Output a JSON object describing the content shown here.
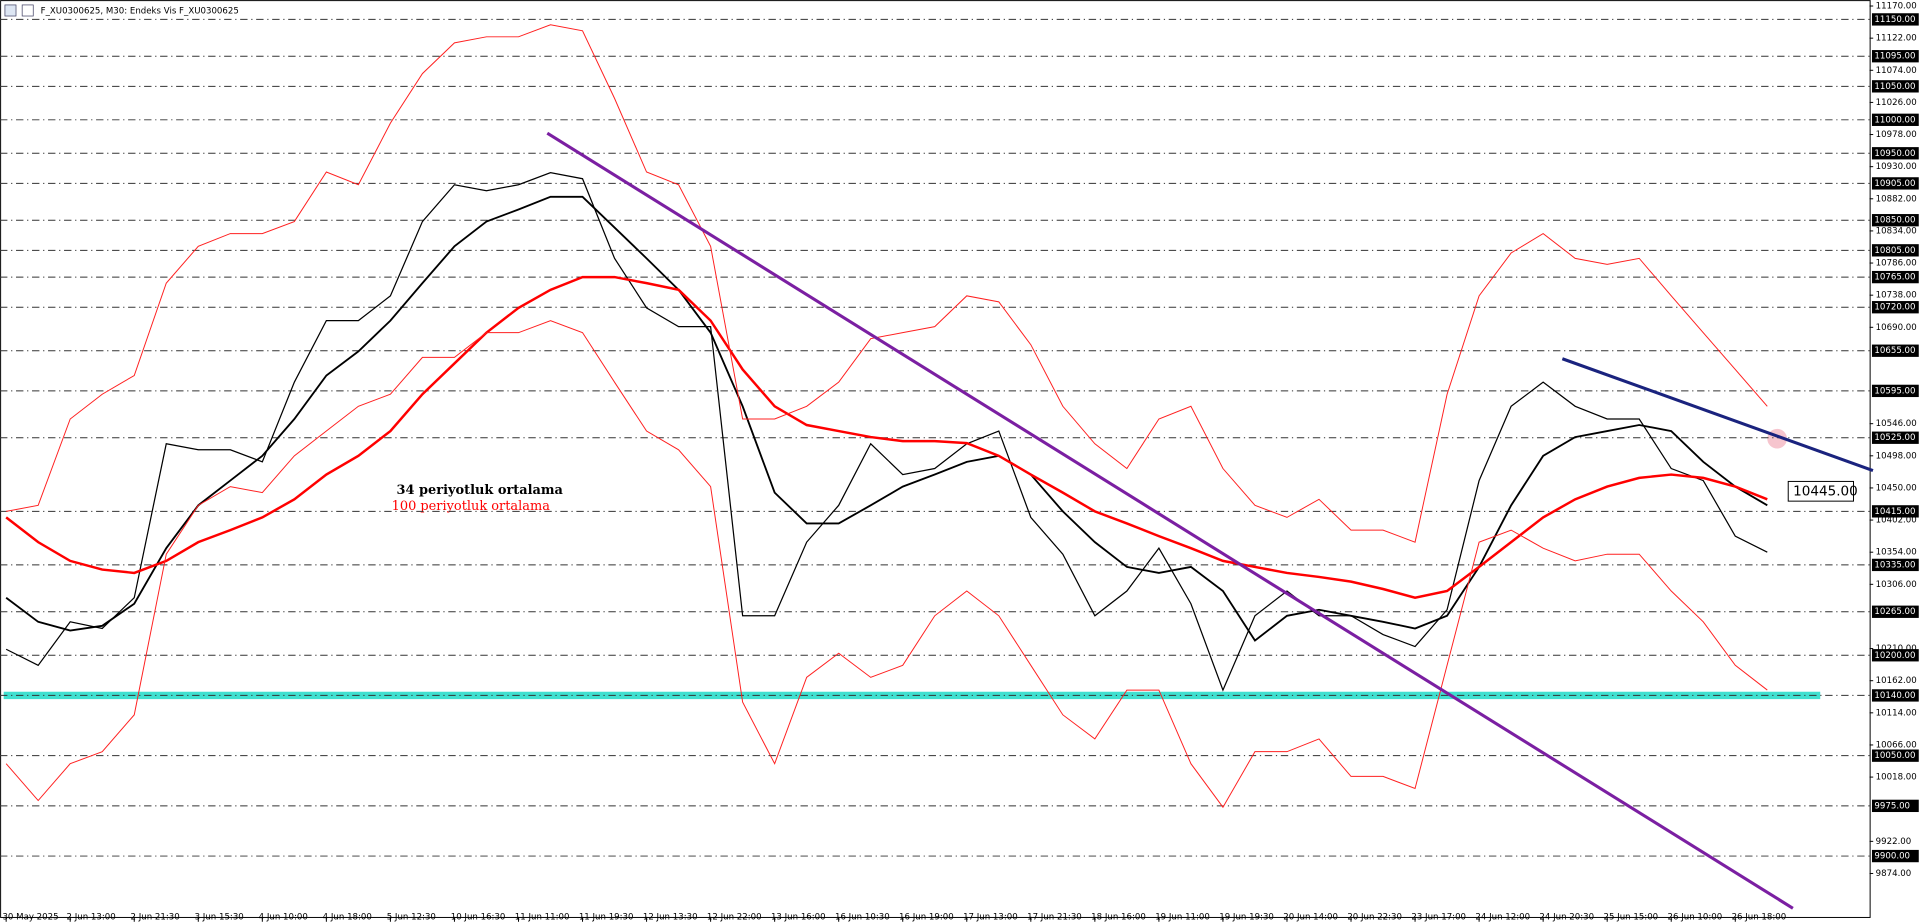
{
  "chart_data": {
    "type": "line",
    "title": "F_XU0300625, M30:  Endeks Vis F_XU0300625",
    "annotations": [
      "34 periyotluk ortalama",
      "100 periyotluk ortalama"
    ],
    "categories": [
      "30 May 2025",
      null,
      "2 Jun 13:00",
      null,
      "2 Jun 21:30",
      null,
      "3 Jun 15:30",
      null,
      "4 Jun 10:00",
      null,
      "4 Jun 18:00",
      null,
      "5 Jun 12:30",
      null,
      "10 Jun 16:30",
      null,
      "11 Jun 11:00",
      null,
      "11 Jun 19:30",
      null,
      "12 Jun 13:30",
      null,
      "12 Jun 22:00",
      null,
      "13 Jun 16:00",
      null,
      "16 Jun 10:30",
      null,
      "16 Jun 19:00",
      null,
      "17 Jun 13:00",
      null,
      "17 Jun 21:30",
      null,
      "18 Jun 16:00",
      null,
      "19 Jun 11:00",
      null,
      "19 Jun 19:30",
      null,
      "20 Jun 14:00",
      null,
      "20 Jun 22:30",
      null,
      "23 Jun 17:00",
      null,
      "24 Jun 12:00",
      null,
      "24 Jun 20:30",
      null,
      "25 Jun 15:00",
      null,
      "26 Jun 10:00",
      null,
      "26 Jun 18:00",
      null
    ],
    "series": [
      {
        "color": "#000000",
        "width": 1,
        "values": [
          10209,
          10185,
          10250,
          10240,
          10286,
          10516,
          10507,
          10507,
          10489,
          10608,
          10700,
          10700,
          10737,
          10848,
          10903,
          10894,
          10903,
          10921,
          10912,
          10793,
          10719,
          10691,
          10691,
          10259,
          10259,
          10369,
          10424,
          10516,
          10470,
          10479,
          10516,
          10535,
          10406,
          10351,
          10259,
          10296,
          10360,
          10277,
          10148,
          10259,
          10296,
          10259,
          10259,
          10231,
          10213,
          10268,
          10461,
          10572,
          10608,
          10572,
          10553,
          10553,
          10479,
          10461,
          10378,
          10354
        ]
      },
      {
        "name": "34 periyotluk ortalama",
        "color": "#000000",
        "width": 1.5,
        "values": [
          10286,
          10250,
          10237,
          10244,
          10277,
          10360,
          10424,
          10461,
          10498,
          10553,
          10618,
          10654,
          10700,
          10756,
          10811,
          10848,
          10866,
          10885,
          10885,
          10839,
          10793,
          10746,
          10682,
          10572,
          10443,
          10397,
          10397,
          10424,
          10452,
          10470,
          10489,
          10498,
          10470,
          10415,
          10369,
          10332,
          10323,
          10332,
          10296,
          10222,
          10259,
          10268,
          10259,
          10250,
          10240,
          10259,
          10332,
          10424,
          10498,
          10526,
          10535,
          10544,
          10535,
          10489,
          10452,
          10424
        ]
      },
      {
        "name": "100 periyotluk ortalama",
        "color": "#ff0000",
        "width": 2,
        "values": [
          10406,
          10369,
          10341,
          10328,
          10323,
          10341,
          10369,
          10387,
          10406,
          10433,
          10470,
          10498,
          10535,
          10590,
          10636,
          10682,
          10719,
          10746,
          10765,
          10765,
          10756,
          10746,
          10700,
          10627,
          10572,
          10544,
          10535,
          10526,
          10520,
          10520,
          10517,
          10498,
          10470,
          10443,
          10415,
          10397,
          10378,
          10360,
          10341,
          10332,
          10323,
          10317,
          10310,
          10299,
          10286,
          10296,
          10332,
          10369,
          10406,
          10433,
          10452,
          10465,
          10470,
          10465,
          10452,
          10433
        ]
      },
      {
        "color": "#ff2020",
        "width": 0.8,
        "values": [
          10415,
          10424,
          10553,
          10590,
          10618,
          10756,
          10811,
          10830,
          10830,
          10848,
          10922,
          10903,
          10995,
          11069,
          11115,
          11124,
          11124,
          11142,
          11133,
          11032,
          10922,
          10903,
          10811,
          10553,
          10553,
          10572,
          10608,
          10673,
          10682,
          10691,
          10737,
          10728,
          10664,
          10572,
          10516,
          10479,
          10553,
          10572,
          10479,
          10424,
          10406,
          10433,
          10387,
          10387,
          10369,
          10590,
          10737,
          10801,
          10830,
          10793,
          10784,
          10793,
          10737,
          10682,
          10627,
          10572
        ]
      },
      {
        "color": "#ff2020",
        "width": 0.8,
        "values": [
          10038,
          9983,
          10038,
          10056,
          10111,
          10351,
          10424,
          10452,
          10443,
          10498,
          10535,
          10572,
          10590,
          10645,
          10645,
          10682,
          10682,
          10700,
          10682,
          10608,
          10535,
          10507,
          10452,
          10130,
          10038,
          10167,
          10203,
          10167,
          10185,
          10259,
          10296,
          10259,
          10185,
          10111,
          10075,
          10148,
          10148,
          10038,
          9973,
          10056,
          10056,
          10075,
          10019,
          10019,
          10001,
          10185,
          10369,
          10387,
          10360,
          10341,
          10351,
          10351,
          10296,
          10250,
          10185,
          10148
        ]
      }
    ],
    "ylim": [
      9800,
      11179
    ],
    "yticks": [
      {
        "value": 11170,
        "label": "11170.00"
      },
      {
        "value": 11122,
        "label": "11122.00"
      },
      {
        "value": 11074,
        "label": "11074.00"
      },
      {
        "value": 11026,
        "label": "11026.00"
      },
      {
        "value": 10978,
        "label": "10978.00"
      },
      {
        "value": 10930,
        "label": "10930.00"
      },
      {
        "value": 10882,
        "label": "10882.00"
      },
      {
        "value": 10834,
        "label": "10834.00"
      },
      {
        "value": 10786,
        "label": "10786.00"
      },
      {
        "value": 10738,
        "label": "10738.00"
      },
      {
        "value": 10690,
        "label": "10690.00"
      },
      {
        "value": 10546,
        "label": "10546.00"
      },
      {
        "value": 10498,
        "label": "10498.00"
      },
      {
        "value": 10450,
        "label": "10450.00"
      },
      {
        "value": 10402,
        "label": "10402.00"
      },
      {
        "value": 10354,
        "label": "10354.00"
      },
      {
        "value": 10306,
        "label": "10306.00"
      },
      {
        "value": 10210,
        "label": "10210.00"
      },
      {
        "value": 10162,
        "label": "10162.00"
      },
      {
        "value": 10114,
        "label": "10114.00"
      },
      {
        "value": 10066,
        "label": "10066.00"
      },
      {
        "value": 10018,
        "label": "10018.00"
      },
      {
        "value": 9922,
        "label": "9922.00"
      },
      {
        "value": 9874,
        "label": "9874.00"
      }
    ],
    "levels": [
      {
        "value": 11150,
        "label": "11150.00"
      },
      {
        "value": 11095,
        "label": "11095.00"
      },
      {
        "value": 11050,
        "label": "11050.00"
      },
      {
        "value": 11000,
        "label": "11000.00"
      },
      {
        "value": 10950,
        "label": "10950.00"
      },
      {
        "value": 10905,
        "label": "10905.00"
      },
      {
        "value": 10850,
        "label": "10850.00"
      },
      {
        "value": 10805,
        "label": "10805.00"
      },
      {
        "value": 10765,
        "label": "10765.00"
      },
      {
        "value": 10720,
        "label": "10720.00"
      },
      {
        "value": 10655,
        "label": "10655.00"
      },
      {
        "value": 10595,
        "label": "10595.00"
      },
      {
        "value": 10525,
        "label": "10525.00"
      },
      {
        "value": 10415,
        "label": "10415.00"
      },
      {
        "value": 10335,
        "label": "10335.00"
      },
      {
        "value": 10265,
        "label": "10265.00"
      },
      {
        "value": 10200,
        "label": "10200.00"
      },
      {
        "value": 10140,
        "label": "10140.00",
        "highlight": "#40e0d0"
      },
      {
        "value": 10050,
        "label": "10050.00"
      },
      {
        "value": 9975,
        "label": "9975.00"
      },
      {
        "value": 9900,
        "label": "9900.00"
      }
    ],
    "current_price": {
      "value": 10445,
      "label": "10445.00"
    },
    "trendlines": [
      {
        "color": "#7b1fa2",
        "x": [
          16.9,
          55.8
        ],
        "y": [
          10980,
          9822
        ]
      },
      {
        "color": "#1a237e",
        "x": [
          48.6,
          58.3
        ],
        "y": [
          10643,
          10476
        ]
      }
    ]
  }
}
